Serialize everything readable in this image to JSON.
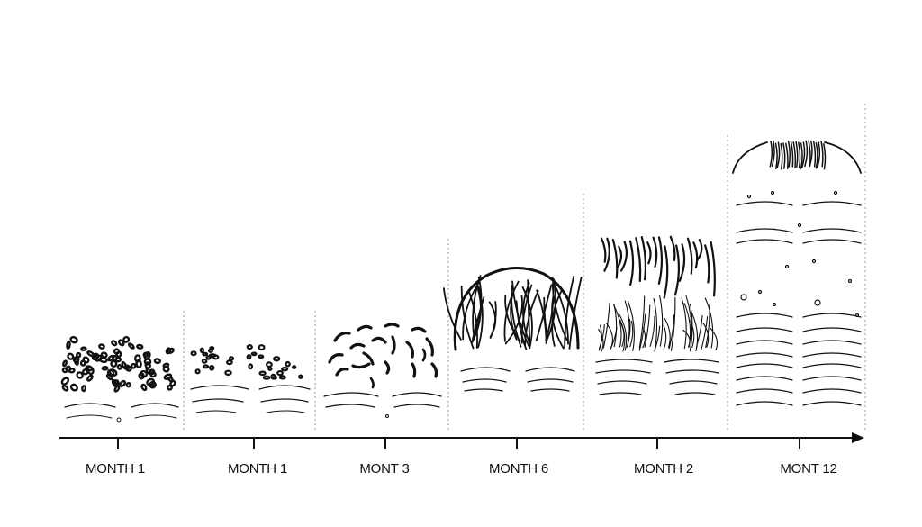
{
  "stages": [
    {
      "label": "MONTH 1"
    },
    {
      "label": "MONTH 1"
    },
    {
      "label": "MONT 3"
    },
    {
      "label": "MONTH 6"
    },
    {
      "label": "MONTH 2"
    },
    {
      "label": "MONT 12"
    }
  ],
  "colors": {
    "ink": "#111111",
    "guide": "#9a9a9a",
    "background": "#ffffff"
  }
}
